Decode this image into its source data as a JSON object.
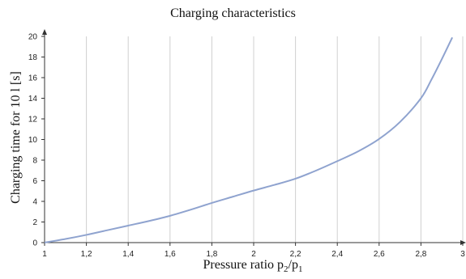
{
  "chart_data": {
    "type": "line",
    "title": "Charging characteristics",
    "xlabel": "Pressure ratio p2/p1",
    "xlabel_main": "Pressure ratio p",
    "xlabel_sub1": "2",
    "xlabel_slash": "/p",
    "xlabel_sub2": "1",
    "ylabel": "Charging time for 10 l [s]",
    "xlim": [
      1,
      3
    ],
    "ylim": [
      0,
      20
    ],
    "xticks": [
      1,
      1.2,
      1.4,
      1.6,
      1.8,
      2,
      2.2,
      2.4,
      2.6,
      2.8,
      3
    ],
    "xtick_labels": [
      "1",
      "1,2",
      "1,4",
      "1,6",
      "1,8",
      "2",
      "2,2",
      "2,4",
      "2,6",
      "2,8",
      "3"
    ],
    "yticks": [
      0,
      2,
      4,
      6,
      8,
      10,
      12,
      14,
      16,
      18,
      20
    ],
    "ytick_labels": [
      "0",
      "2",
      "4",
      "6",
      "8",
      "10",
      "12",
      "14",
      "16",
      "18",
      "20"
    ],
    "grid": "vertical",
    "series_color": "#8fa3cf",
    "series": [
      {
        "x": [
          1.0,
          1.1,
          1.2,
          1.3,
          1.4,
          1.5,
          1.6,
          1.7,
          1.8,
          1.9,
          2.0,
          2.1,
          2.2,
          2.3,
          2.4,
          2.5,
          2.6,
          2.7,
          2.8,
          2.85,
          2.9,
          2.95
        ],
        "y": [
          0.0,
          0.35,
          0.75,
          1.2,
          1.65,
          2.1,
          2.6,
          3.2,
          3.85,
          4.45,
          5.05,
          5.6,
          6.2,
          7.0,
          7.9,
          8.85,
          10.05,
          11.7,
          14.0,
          15.8,
          17.8,
          19.9
        ]
      }
    ]
  }
}
